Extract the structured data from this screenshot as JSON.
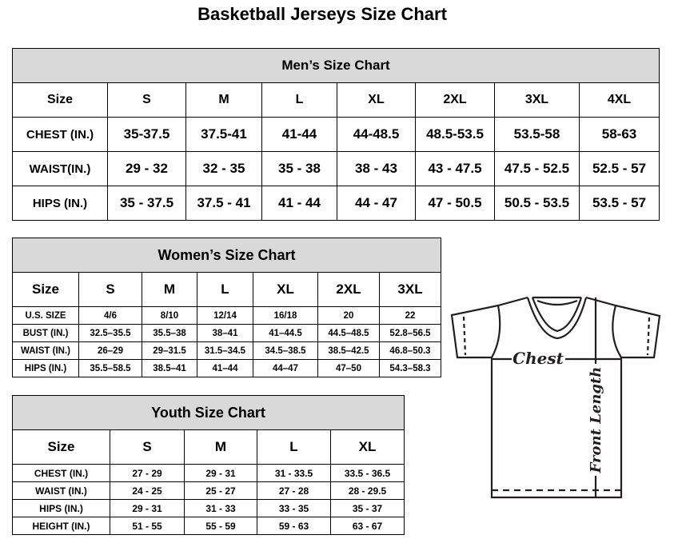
{
  "title": "Basketball Jerseys Size Chart",
  "men": {
    "title": "Men’s Size Chart",
    "header": [
      "Size",
      "S",
      "M",
      "L",
      "XL",
      "2XL",
      "3XL",
      "4XL"
    ],
    "rows": [
      [
        "CHEST (IN.)",
        "35-37.5",
        "37.5-41",
        "41-44",
        "44-48.5",
        "48.5-53.5",
        "53.5-58",
        "58-63"
      ],
      [
        "WAIST(IN.)",
        "29 - 32",
        "32 - 35",
        "35 - 38",
        "38 - 43",
        "43 - 47.5",
        "47.5 - 52.5",
        "52.5 - 57"
      ],
      [
        "HIPS (IN.)",
        "35 - 37.5",
        "37.5 - 41",
        "41 - 44",
        "44 - 47",
        "47 - 50.5",
        "50.5 - 53.5",
        "53.5 - 57"
      ]
    ]
  },
  "women": {
    "title": "Women’s Size Chart",
    "header": [
      "Size",
      "S",
      "M",
      "L",
      "XL",
      "2XL",
      "3XL"
    ],
    "rows": [
      [
        "U.S. SIZE",
        "4/6",
        "8/10",
        "12/14",
        "16/18",
        "20",
        "22"
      ],
      [
        "BUST (IN.)",
        "32.5–35.5",
        "35.5–38",
        "38–41",
        "41–44.5",
        "44.5–48.5",
        "52.8–56.5"
      ],
      [
        "WAIST (IN.)",
        "26–29",
        "29–31.5",
        "31.5–34.5",
        "34.5–38.5",
        "38.5–42.5",
        "46.8–50.3"
      ],
      [
        "HIPS (IN.)",
        "35.5–58.5",
        "38.5–41",
        "41–44",
        "44–47",
        "47–50",
        "54.3–58.3"
      ]
    ]
  },
  "youth": {
    "title": "Youth Size Chart",
    "header": [
      "Size",
      "S",
      "M",
      "L",
      "XL"
    ],
    "rows": [
      [
        "CHEST (IN.)",
        "27 - 29",
        "29 - 31",
        "31 - 33.5",
        "33.5 - 36.5"
      ],
      [
        "WAIST (IN.)",
        "24 - 25",
        "25 - 27",
        "27 - 28",
        "28 - 29.5"
      ],
      [
        "HIPS (IN.)",
        "29 - 31",
        "31 - 33",
        "33 - 35",
        "35 - 37"
      ],
      [
        "HEIGHT (IN.)",
        "51 - 55",
        "55 - 59",
        "59 - 63",
        "63 - 67"
      ]
    ]
  },
  "diagram": {
    "chest_label": "Chest",
    "length_label": "Front Length",
    "line_color": "#231f20"
  }
}
